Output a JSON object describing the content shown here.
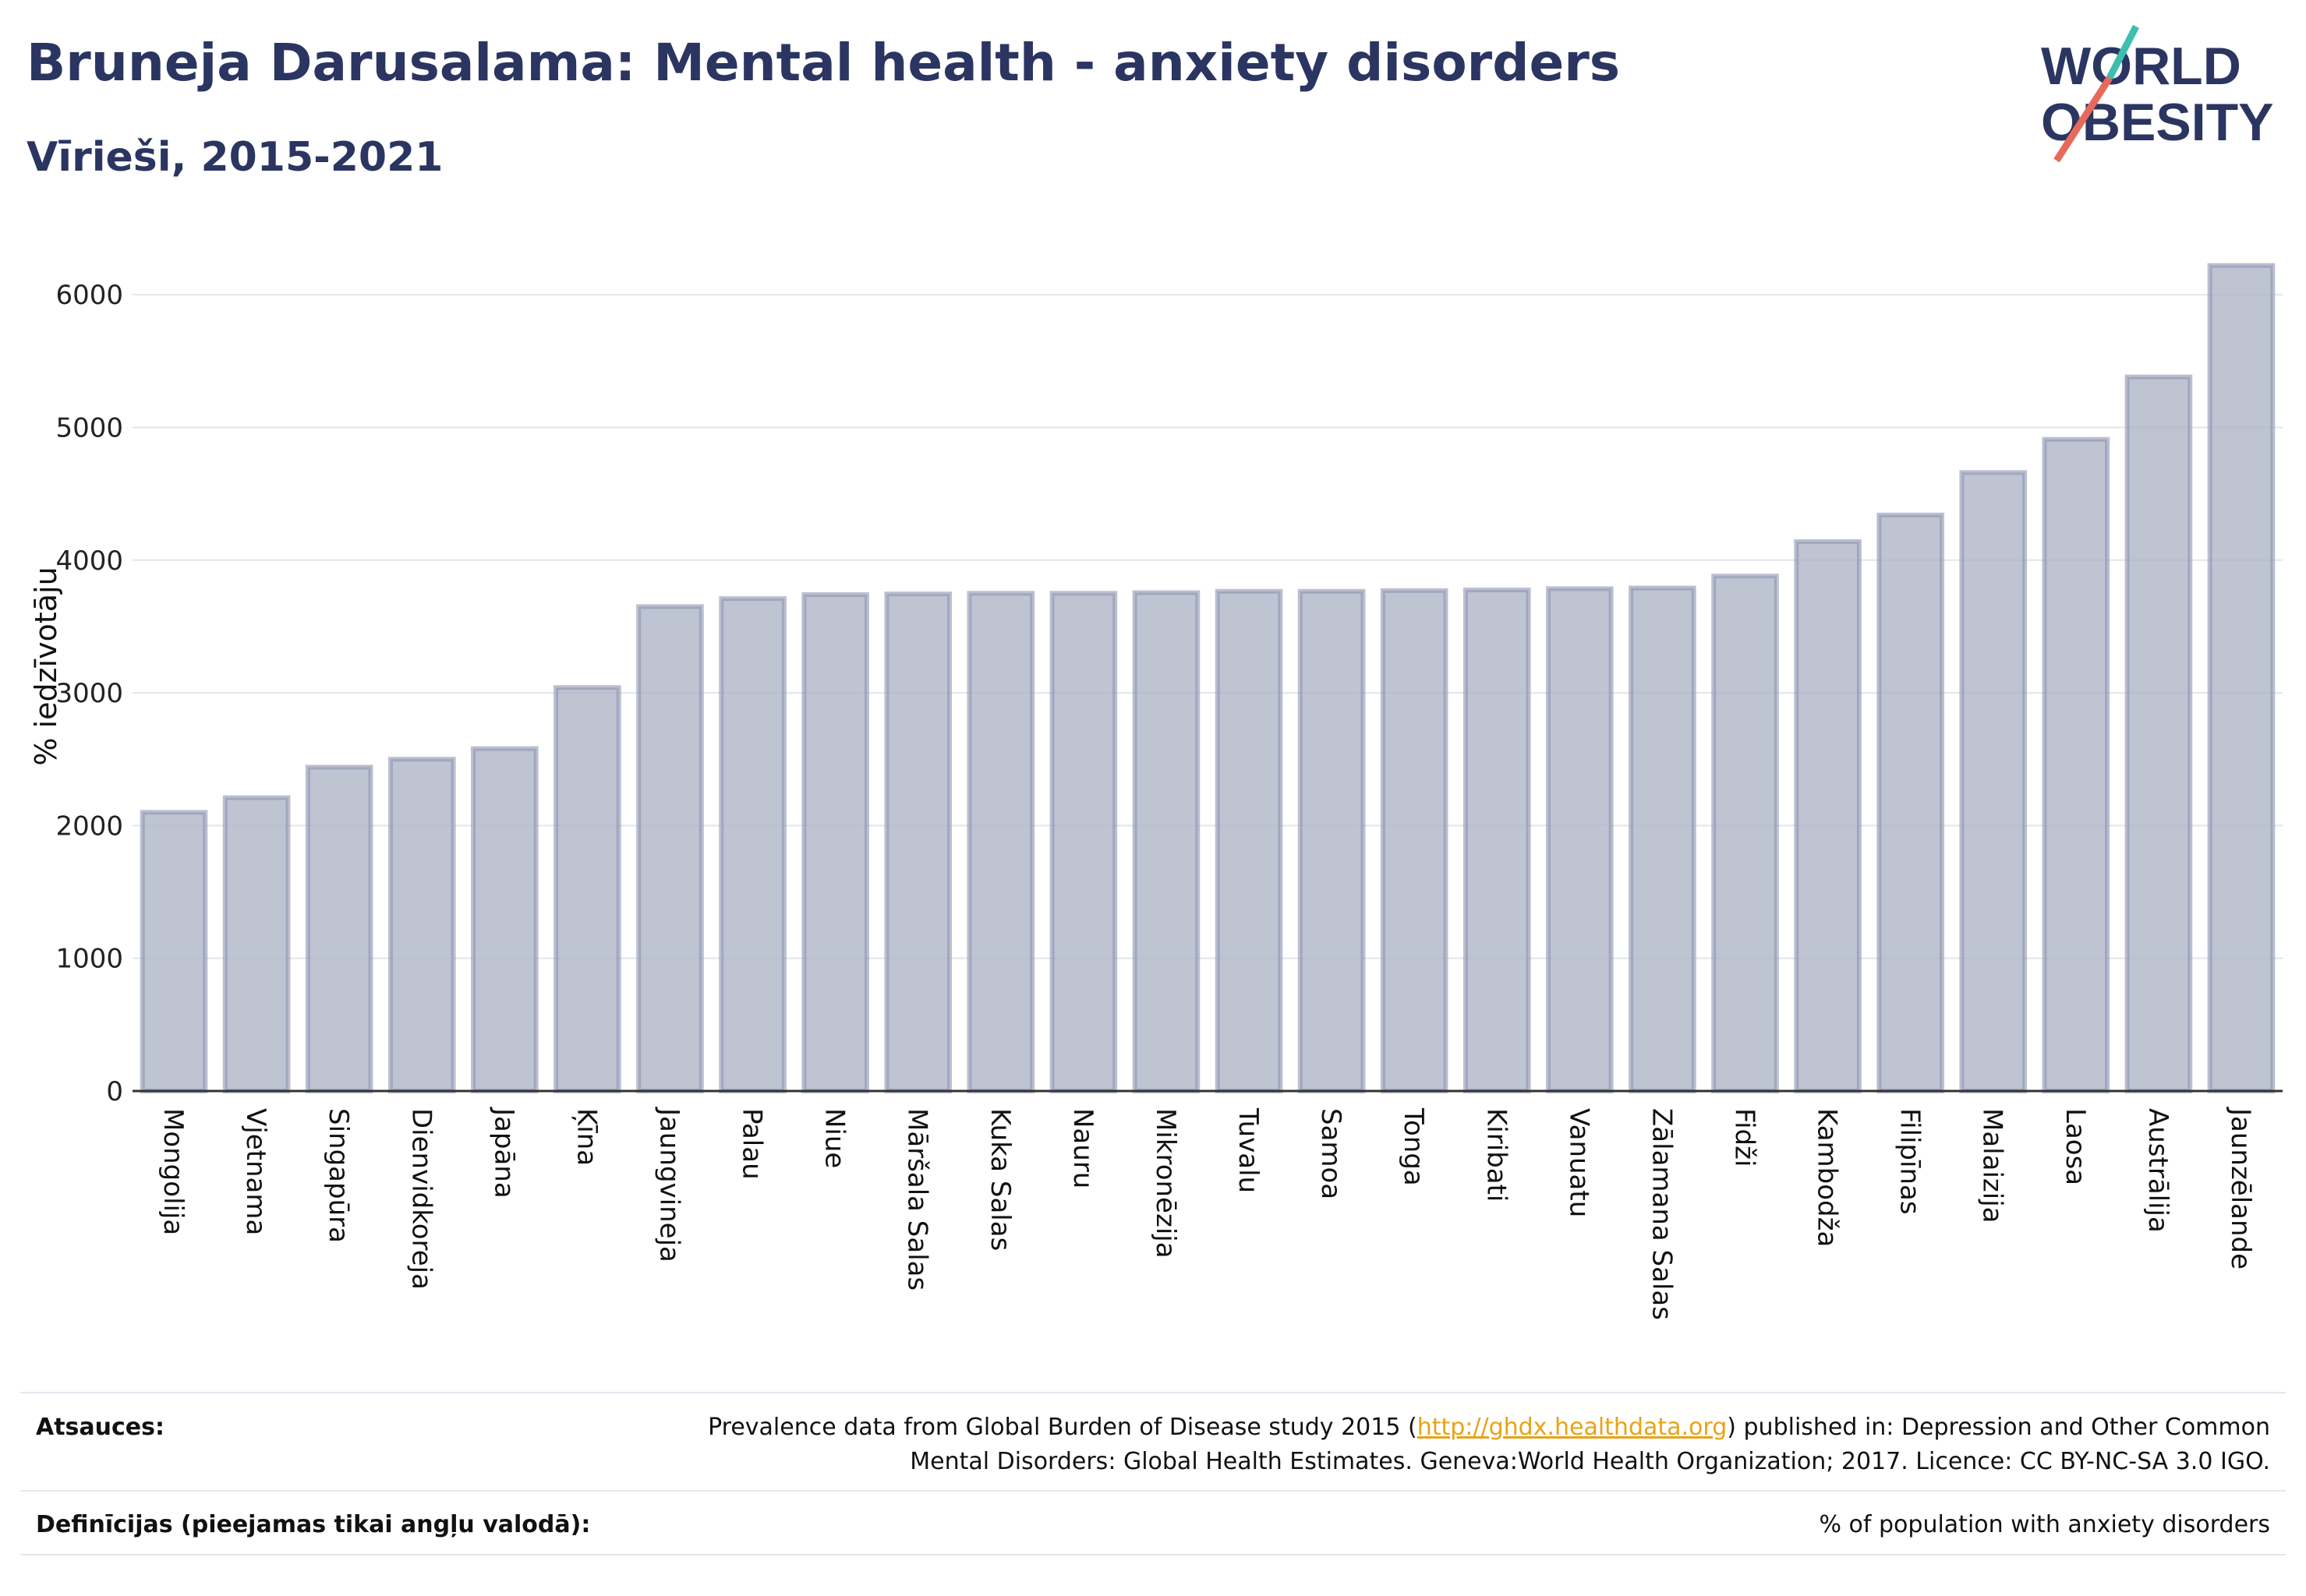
{
  "header": {
    "title": "Bruneja Darusalama: Mental health - anxiety disorders",
    "subtitle": "Vīrieši, 2015-2021"
  },
  "logo": {
    "line1": "WORLD",
    "line2": "OBESITY",
    "colors": {
      "text": "#2b3561",
      "slash_top": "#3cbfae",
      "slash_bottom": "#e8695a"
    }
  },
  "chart_data": {
    "type": "bar",
    "title": "Bruneja Darusalama: Mental health - anxiety disorders",
    "subtitle": "Vīrieši, 2015-2021",
    "ylabel": "% iedzīvotāju",
    "xlabel": "",
    "ylim": [
      0,
      6400
    ],
    "yticks": [
      0,
      1000,
      2000,
      3000,
      4000,
      5000,
      6000
    ],
    "grid": true,
    "bar_color": "#aab0c4",
    "bar_border": "#8e95b0",
    "categories": [
      "Mongolija",
      "Vjetnama",
      "Singapūra",
      "Dienvidkoreja",
      "Japāna",
      "Ķīna",
      "Jaungvineja",
      "Palau",
      "Niue",
      "Māršala Salas",
      "Kuka Salas",
      "Nauru",
      "Mikronēzija",
      "Tuvalu",
      "Samoa",
      "Tonga",
      "Kiribati",
      "Vanuatu",
      "Zālamana Salas",
      "Fidži",
      "Kambodža",
      "Filipīnas",
      "Malaizija",
      "Laosa",
      "Austrālija",
      "Jaunzēlande"
    ],
    "values": [
      2100,
      2210,
      2440,
      2500,
      2580,
      3040,
      3650,
      3710,
      3740,
      3745,
      3750,
      3750,
      3755,
      3765,
      3765,
      3770,
      3775,
      3785,
      3790,
      3880,
      4140,
      4340,
      4660,
      4910,
      5380,
      6220
    ]
  },
  "footer": {
    "sources_label": "Atsauces:",
    "sources_text_1": "Prevalence data from Global Burden of Disease study 2015 (",
    "sources_link": "http://ghdx.healthdata.org",
    "sources_text_2": ") published in: Depression and Other Common",
    "sources_text_3": "Mental Disorders: Global Health Estimates. Geneva:World Health Organization; 2017. Licence: CC BY-NC-SA 3.0 IGO.",
    "definitions_label": "Definīcijas (pieejamas tikai angļu valodā):",
    "definitions_text": "% of population with anxiety disorders"
  }
}
